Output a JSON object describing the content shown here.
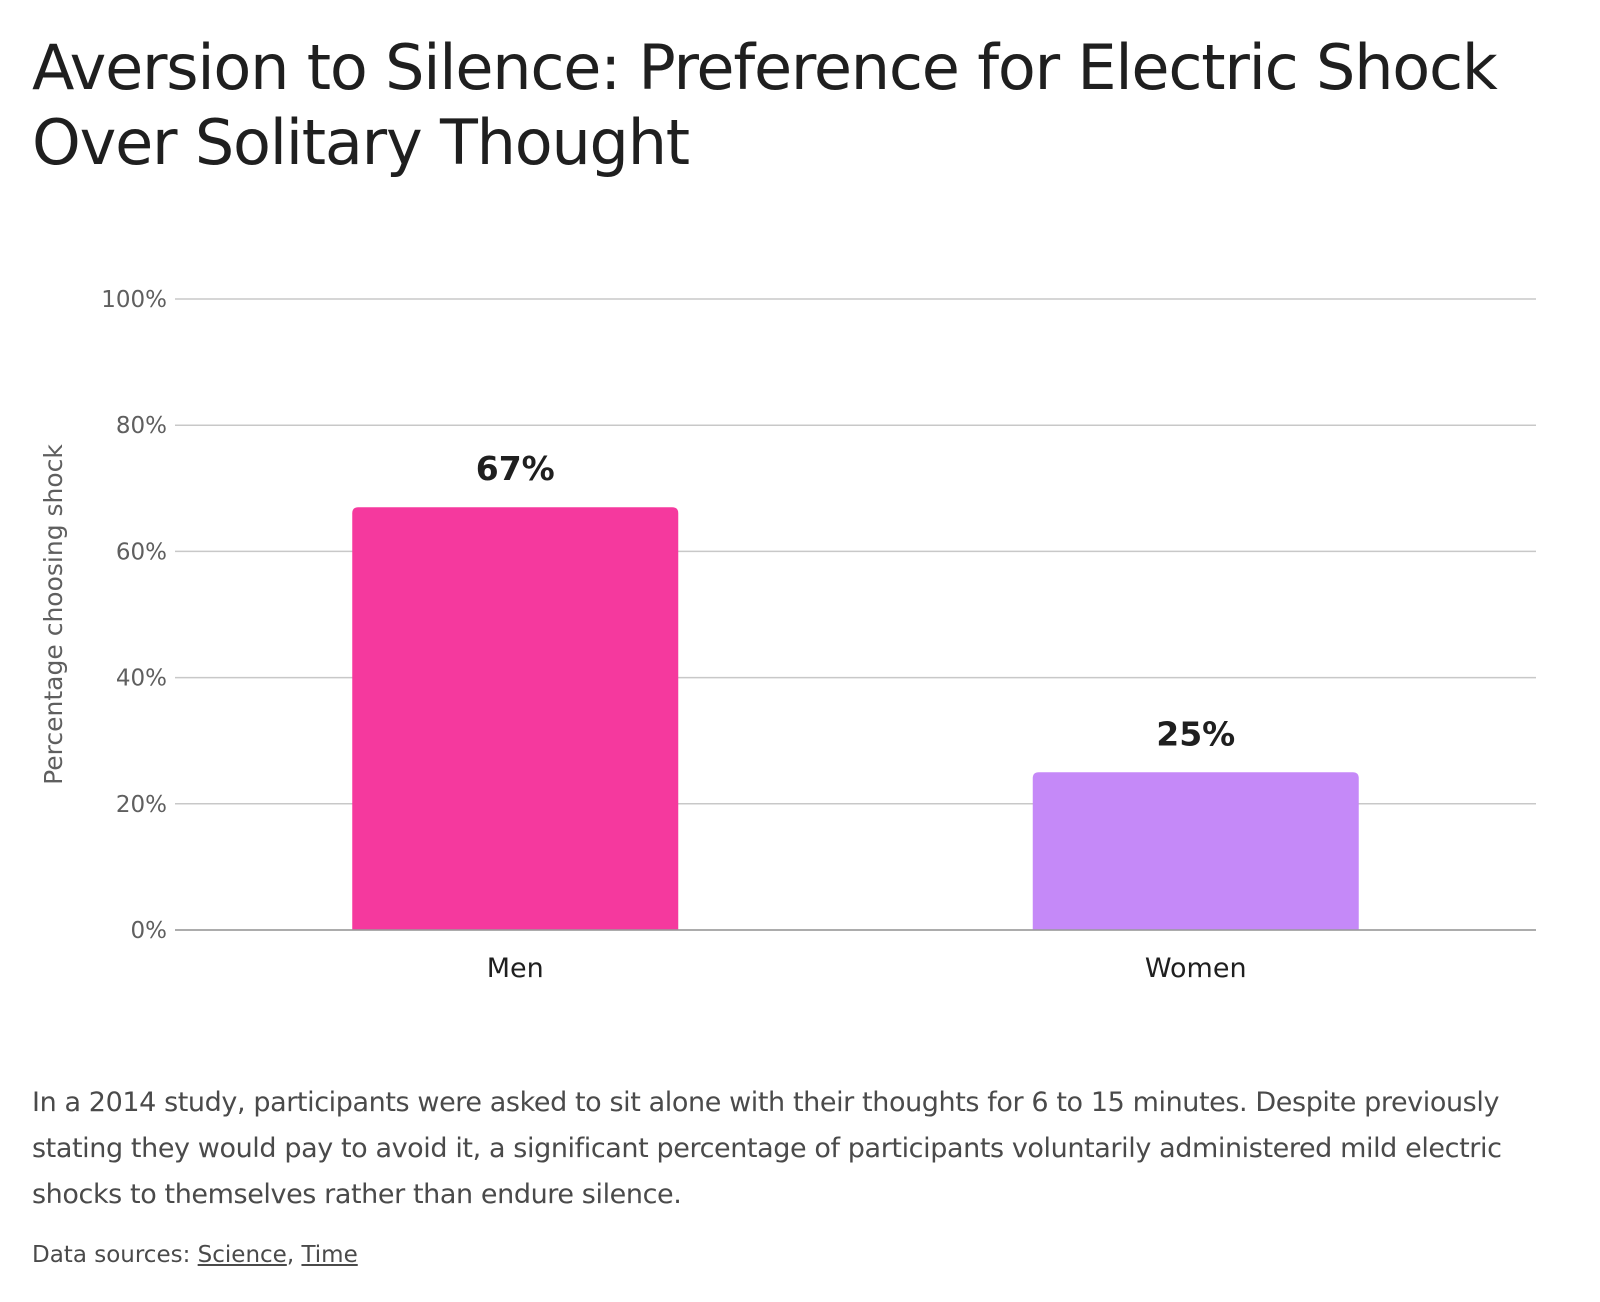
{
  "title": "Aversion to Silence: Preference for Electric Shock Over Solitary Thought",
  "description": "In a 2014 study, participants were asked to sit alone with their thoughts for 6 to 15 minutes. Despite previously stating they would pay to avoid it, a significant percentage of participants voluntarily administered mild electric shocks to themselves rather than endure silence.",
  "sources": {
    "label": "Data sources:",
    "links": [
      "Science",
      "Time"
    ],
    "separator": ","
  },
  "chart_data": {
    "type": "bar",
    "title": "Aversion to Silence: Preference for Electric Shock Over Solitary Thought",
    "categories": [
      "Men",
      "Women"
    ],
    "values": [
      67,
      25
    ],
    "value_labels": [
      "67%",
      "25%"
    ],
    "colors": [
      "#f5399e",
      "#c589f8"
    ],
    "xlabel": "",
    "ylabel": "Percentage choosing shock",
    "ylim": [
      0,
      100
    ],
    "yticks": [
      0,
      20,
      40,
      60,
      80,
      100
    ],
    "ytick_labels": [
      "0%",
      "20%",
      "40%",
      "60%",
      "80%",
      "100%"
    ],
    "grid": true,
    "legend": "none"
  }
}
